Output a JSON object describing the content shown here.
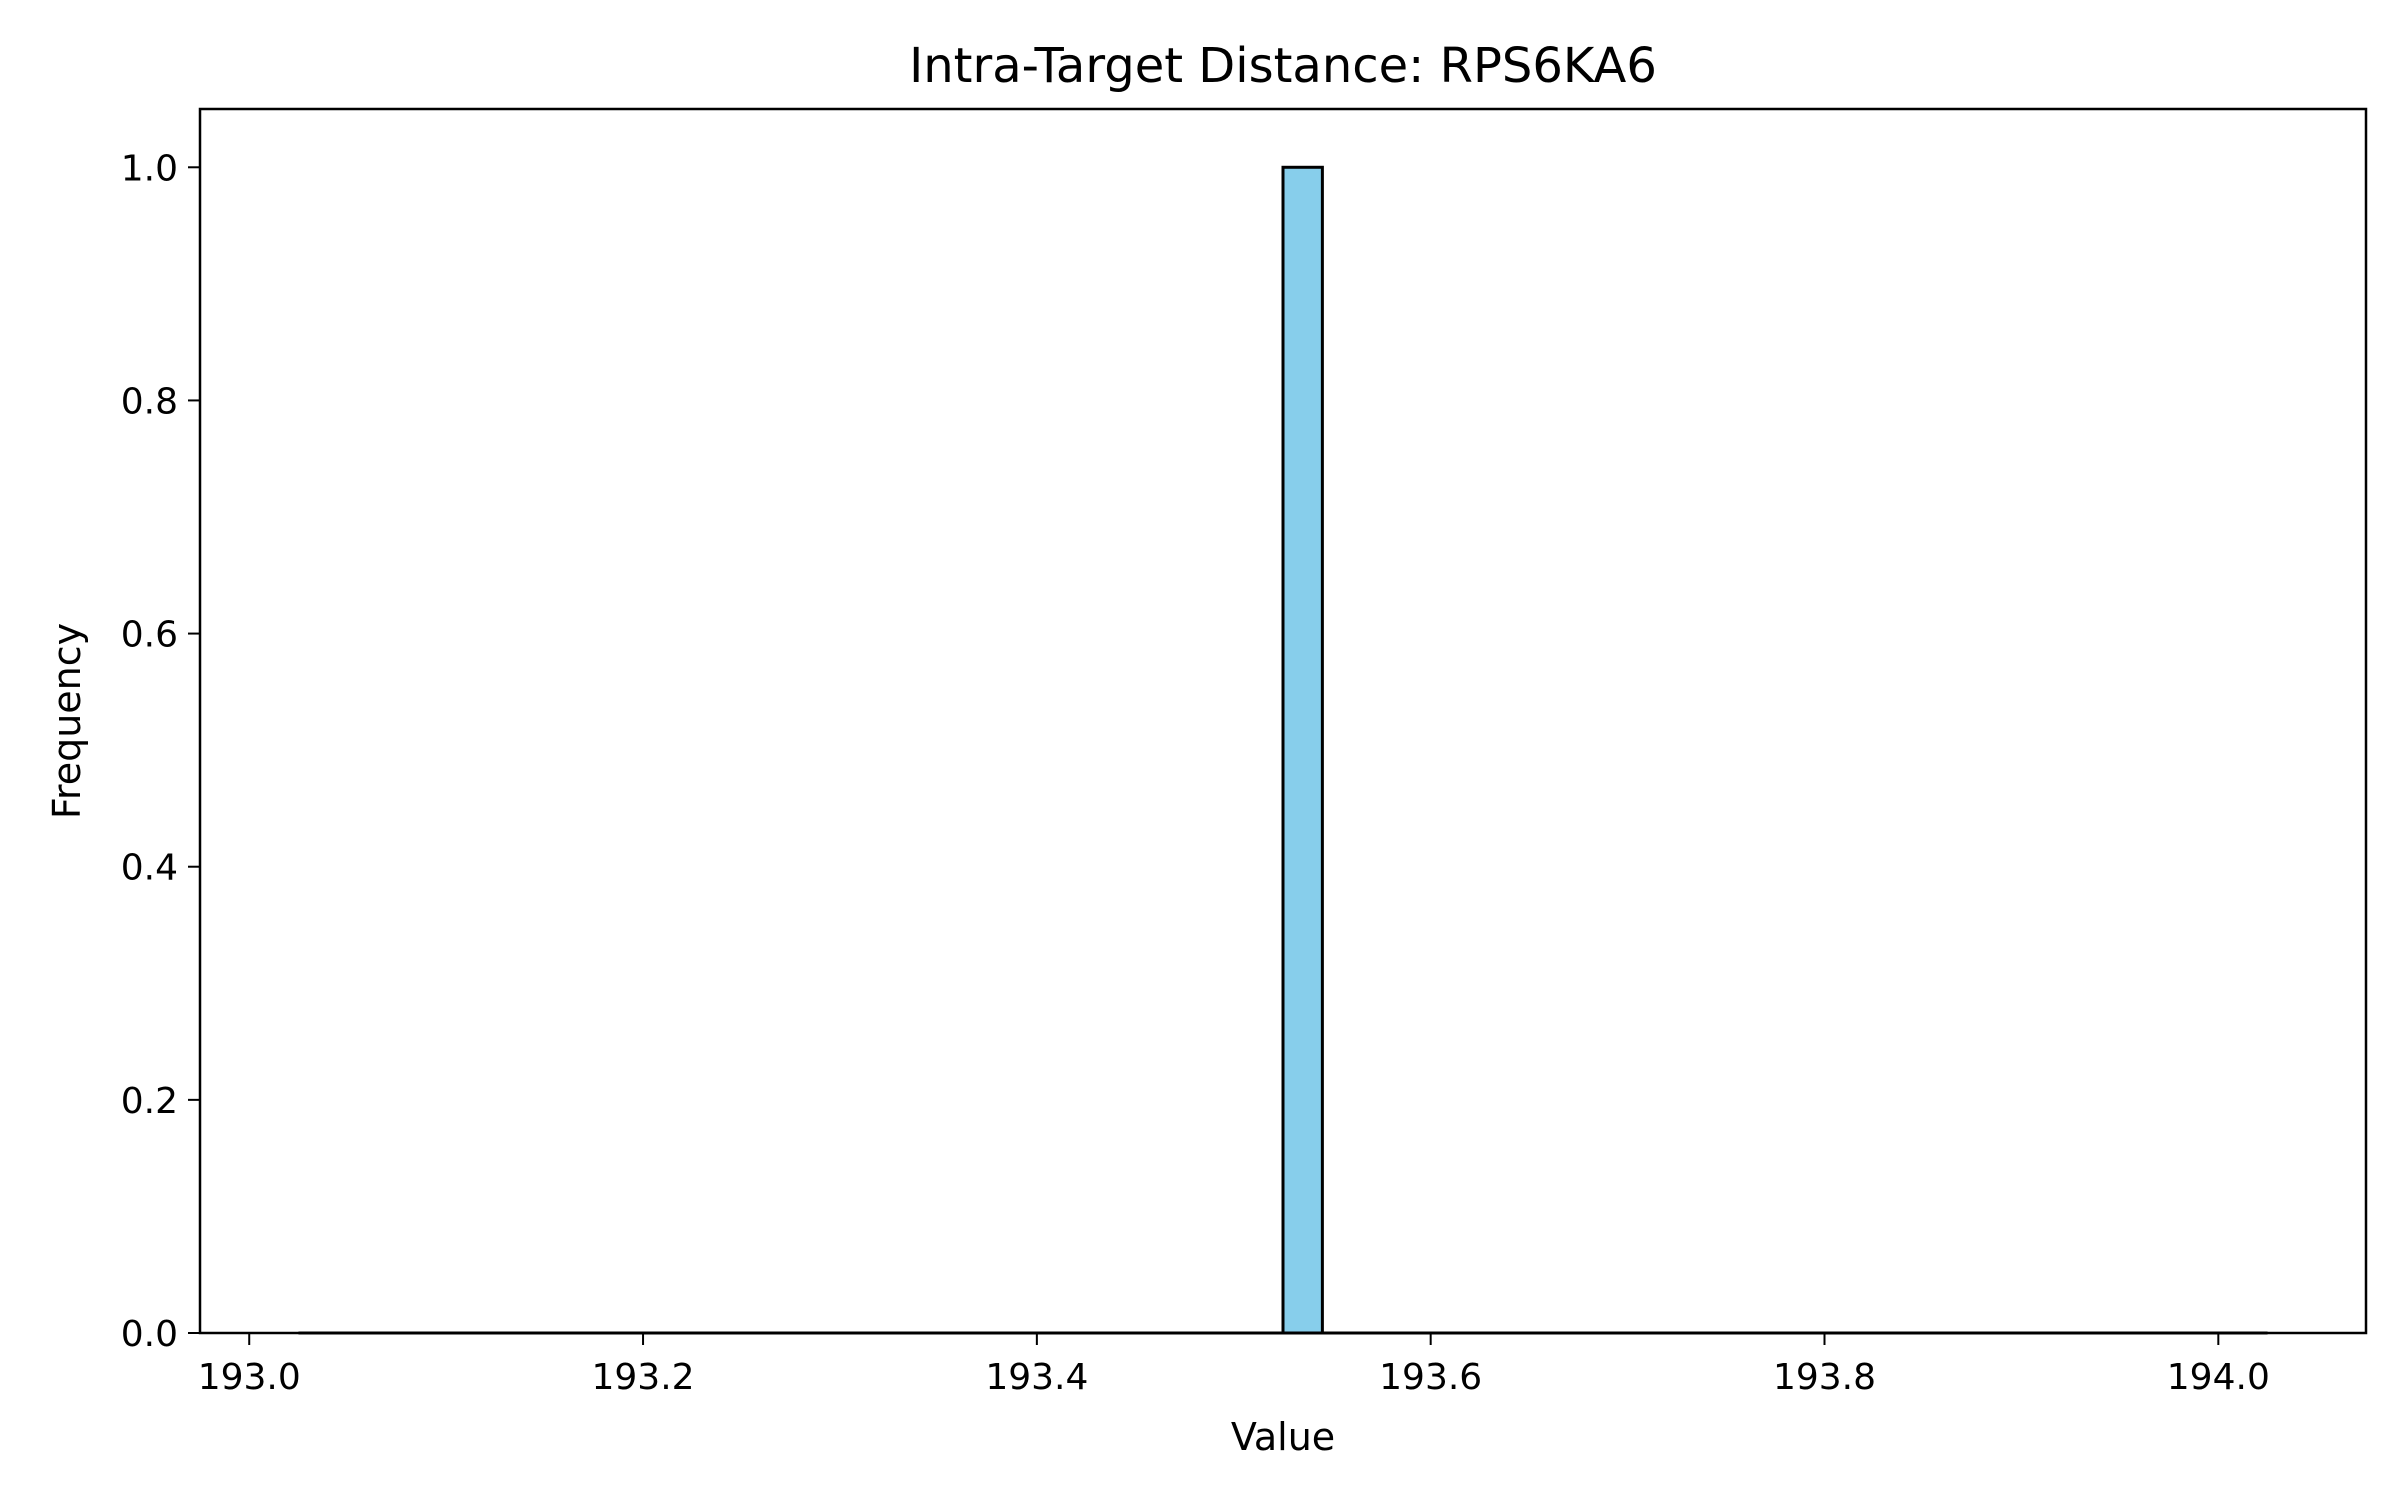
{
  "chart_data": {
    "type": "bar",
    "subtype": "histogram",
    "title": "Intra-Target Distance: RPS6KA6",
    "xlabel": "Value",
    "ylabel": "Frequency",
    "xlim": [
      192.975,
      194.075
    ],
    "ylim": [
      0,
      1.05
    ],
    "xticks": [
      "193.0",
      "193.2",
      "193.4",
      "193.6",
      "193.8",
      "194.0"
    ],
    "yticks": [
      "0.0",
      "0.2",
      "0.4",
      "0.6",
      "0.8",
      "1.0"
    ],
    "bins": {
      "start": 193.025,
      "end": 194.025,
      "count": 50,
      "nonzero": [
        {
          "x0": 193.525,
          "x1": 193.545,
          "value": 1
        }
      ]
    },
    "bar_color": "#87CEEB",
    "edge_color": "#000000",
    "grid": false,
    "legend": "none"
  }
}
